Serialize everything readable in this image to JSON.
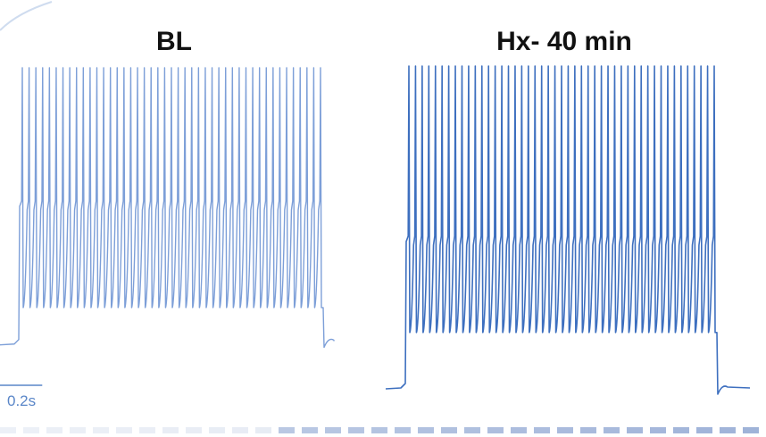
{
  "colors": {
    "trace_bl": "#7d9fd8",
    "trace_hx": "#3d6fbf",
    "scalebar": "#5a86c8",
    "footer_dash_light": "#dde4f0",
    "footer_dash_dark": "#9eb2d8",
    "corner_swoosh": "#cfdcef"
  },
  "chart_data": [
    {
      "type": "line",
      "panel": "left",
      "title": "BL",
      "color": "#7d9fd8",
      "xlabel": "",
      "ylabel": "",
      "grid": false,
      "spike_count": 45,
      "spike_train_duration_s": 1.44,
      "baseline_level": 0.07,
      "trough_level": 0.19,
      "shoulder_level": 0.55,
      "peak_level": 1.0,
      "post_stimulus_level": 0.08
    },
    {
      "type": "line",
      "panel": "right",
      "title": "Hx- 40 min",
      "color": "#3d6fbf",
      "xlabel": "",
      "ylabel": "",
      "grid": false,
      "spike_count": 47,
      "spike_train_duration_s": 1.45,
      "baseline_level": 0.0,
      "trough_level": 0.17,
      "shoulder_level": 0.47,
      "peak_level": 1.0,
      "post_stimulus_level": 0.0
    }
  ],
  "scalebar": {
    "label": "0.2s",
    "value_s": 0.2,
    "orientation": "horizontal"
  }
}
